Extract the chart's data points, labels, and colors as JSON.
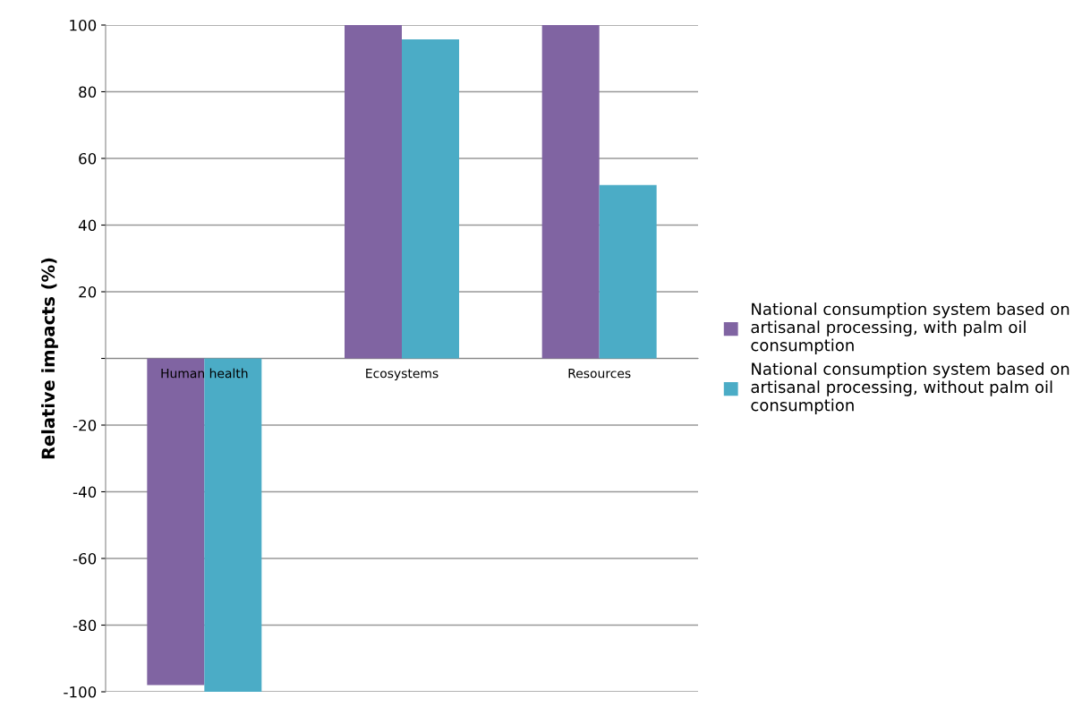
{
  "chart_data": {
    "type": "bar",
    "ylabel": "Relative impacts (%)",
    "categories": [
      "Human health",
      "Ecosystems",
      "Resources"
    ],
    "series": [
      {
        "name": "National consumption system based on artisanal processing, with palm oil consumption",
        "color": "#8064a2",
        "values": [
          -98,
          100,
          100
        ]
      },
      {
        "name": "National consumption system based on artisanal processing, without palm oil consumption",
        "color": "#4bacc6",
        "values": [
          -100,
          95.7,
          52
        ]
      }
    ],
    "ylim": [
      -100,
      100
    ],
    "yticks": [
      -100,
      -80,
      -60,
      -40,
      -20,
      {
        "value": 0,
        "label": null
      },
      20,
      40,
      60,
      80,
      100
    ],
    "grid": "y",
    "legend": "right"
  }
}
